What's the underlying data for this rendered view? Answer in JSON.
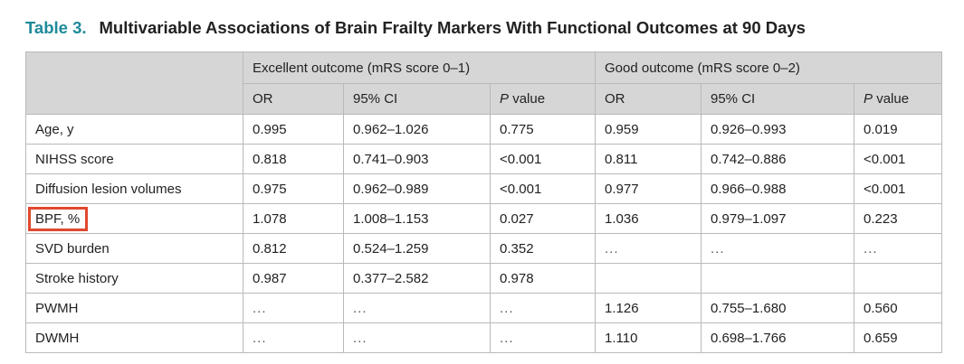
{
  "title": {
    "label": "Table 3.",
    "text": "Multivariable Associations of Brain Frailty Markers With Functional Outcomes at 90 Days"
  },
  "groups": [
    "Excellent outcome (mRS score 0–1)",
    "Good outcome (mRS score 0–2)"
  ],
  "columns": [
    "OR",
    "95% CI",
    "P",
    "value",
    "OR",
    "95% CI",
    "P",
    "value"
  ],
  "rows": [
    {
      "label": "Age, y",
      "cells": [
        "0.995",
        "0.962–1.026",
        "0.775",
        "0.959",
        "0.926–0.993",
        "0.019"
      ]
    },
    {
      "label": "NIHSS score",
      "cells": [
        "0.818",
        "0.741–0.903",
        "<0.001",
        "0.811",
        "0.742–0.886",
        "<0.001"
      ]
    },
    {
      "label": "Diffusion lesion volumes",
      "cells": [
        "0.975",
        "0.962–0.989",
        "<0.001",
        "0.977",
        "0.966–0.988",
        "<0.001"
      ]
    },
    {
      "label": "BPF, %",
      "cells": [
        "1.078",
        "1.008–1.153",
        "0.027",
        "1.036",
        "0.979–1.097",
        "0.223"
      ]
    },
    {
      "label": "SVD burden",
      "cells": [
        "0.812",
        "0.524–1.259",
        "0.352",
        "...",
        "...",
        "..."
      ]
    },
    {
      "label": "Stroke history",
      "cells": [
        "0.987",
        "0.377–2.582",
        "0.978",
        "",
        "",
        ""
      ]
    },
    {
      "label": "PWMH",
      "cells": [
        "...",
        "...",
        "...",
        "1.126",
        "0.755–1.680",
        "0.560"
      ]
    },
    {
      "label": "DWMH",
      "cells": [
        "...",
        "...",
        "...",
        "1.110",
        "0.698–1.766",
        "0.659"
      ]
    }
  ],
  "highlight": {
    "row": 3,
    "color": "#e0482e"
  },
  "colors": {
    "title_label": "#1f8a9a",
    "header_bg": "#d6d6d6",
    "border": "#b9b9b9"
  }
}
